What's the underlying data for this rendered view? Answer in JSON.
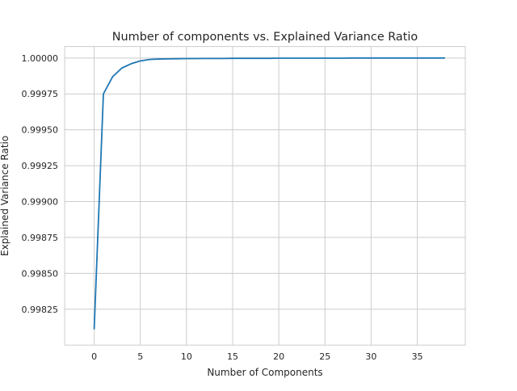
{
  "chart_data": {
    "type": "line",
    "title": "Number of components vs. Explained Variance Ratio",
    "xlabel": "Number of Components",
    "ylabel": "Explained Variance Ratio",
    "xlim": [
      -3.2,
      40.2
    ],
    "ylim": [
      0.998,
      1.00008
    ],
    "xticks": [
      0,
      5,
      10,
      15,
      20,
      25,
      30,
      35
    ],
    "xtick_labels": [
      "0",
      "5",
      "10",
      "15",
      "20",
      "25",
      "30",
      "35"
    ],
    "yticks": [
      0.99825,
      0.9985,
      0.99875,
      0.999,
      0.99925,
      0.9995,
      0.99975,
      1.0
    ],
    "ytick_labels": [
      "0.99825",
      "0.99850",
      "0.99875",
      "0.99900",
      "0.99925",
      "0.99950",
      "0.99975",
      "1.00000"
    ],
    "grid": true,
    "series": [
      {
        "color": "#1f77b4",
        "x": [
          0,
          1,
          2,
          3,
          4,
          5,
          6,
          7,
          8,
          9,
          10,
          11,
          12,
          13,
          14,
          15,
          16,
          17,
          18,
          19,
          20,
          21,
          22,
          23,
          24,
          25,
          26,
          27,
          28,
          29,
          30,
          31,
          32,
          33,
          34,
          35,
          36,
          37,
          38
        ],
        "values": [
          0.99811,
          0.99975,
          0.99987,
          0.99993,
          0.99996,
          0.99998,
          0.99999,
          0.999993,
          0.999994,
          0.999995,
          0.999996,
          0.999996,
          0.999997,
          0.999997,
          0.999997,
          0.999998,
          0.999998,
          0.999998,
          0.999998,
          0.999998,
          0.999999,
          0.999999,
          0.999999,
          0.999999,
          0.999999,
          0.999999,
          0.999999,
          0.999999,
          1.0,
          1.0,
          1.0,
          1.0,
          1.0,
          1.0,
          1.0,
          1.0,
          1.0,
          1.0,
          1.0
        ]
      }
    ]
  },
  "colors": {
    "line": "#1f77b4",
    "grid": "#cccccc",
    "text": "#262626"
  }
}
